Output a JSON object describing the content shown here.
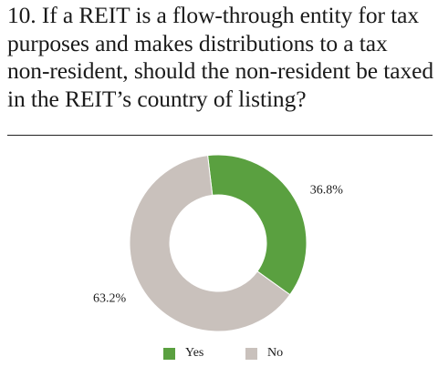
{
  "title": "10. If a REIT is a flow-through entity for tax purposes and makes distributions to a tax non-resident, should the non-resident be taxed in the REIT’s country of listing?",
  "chart_data": {
    "type": "pie",
    "donut": true,
    "categories": [
      "Yes",
      "No"
    ],
    "values": [
      36.8,
      63.2
    ],
    "labels": [
      "36.8%",
      "63.2%"
    ],
    "colors": [
      "#5aa040",
      "#c9c1bc"
    ],
    "legend": "bottom-center"
  }
}
